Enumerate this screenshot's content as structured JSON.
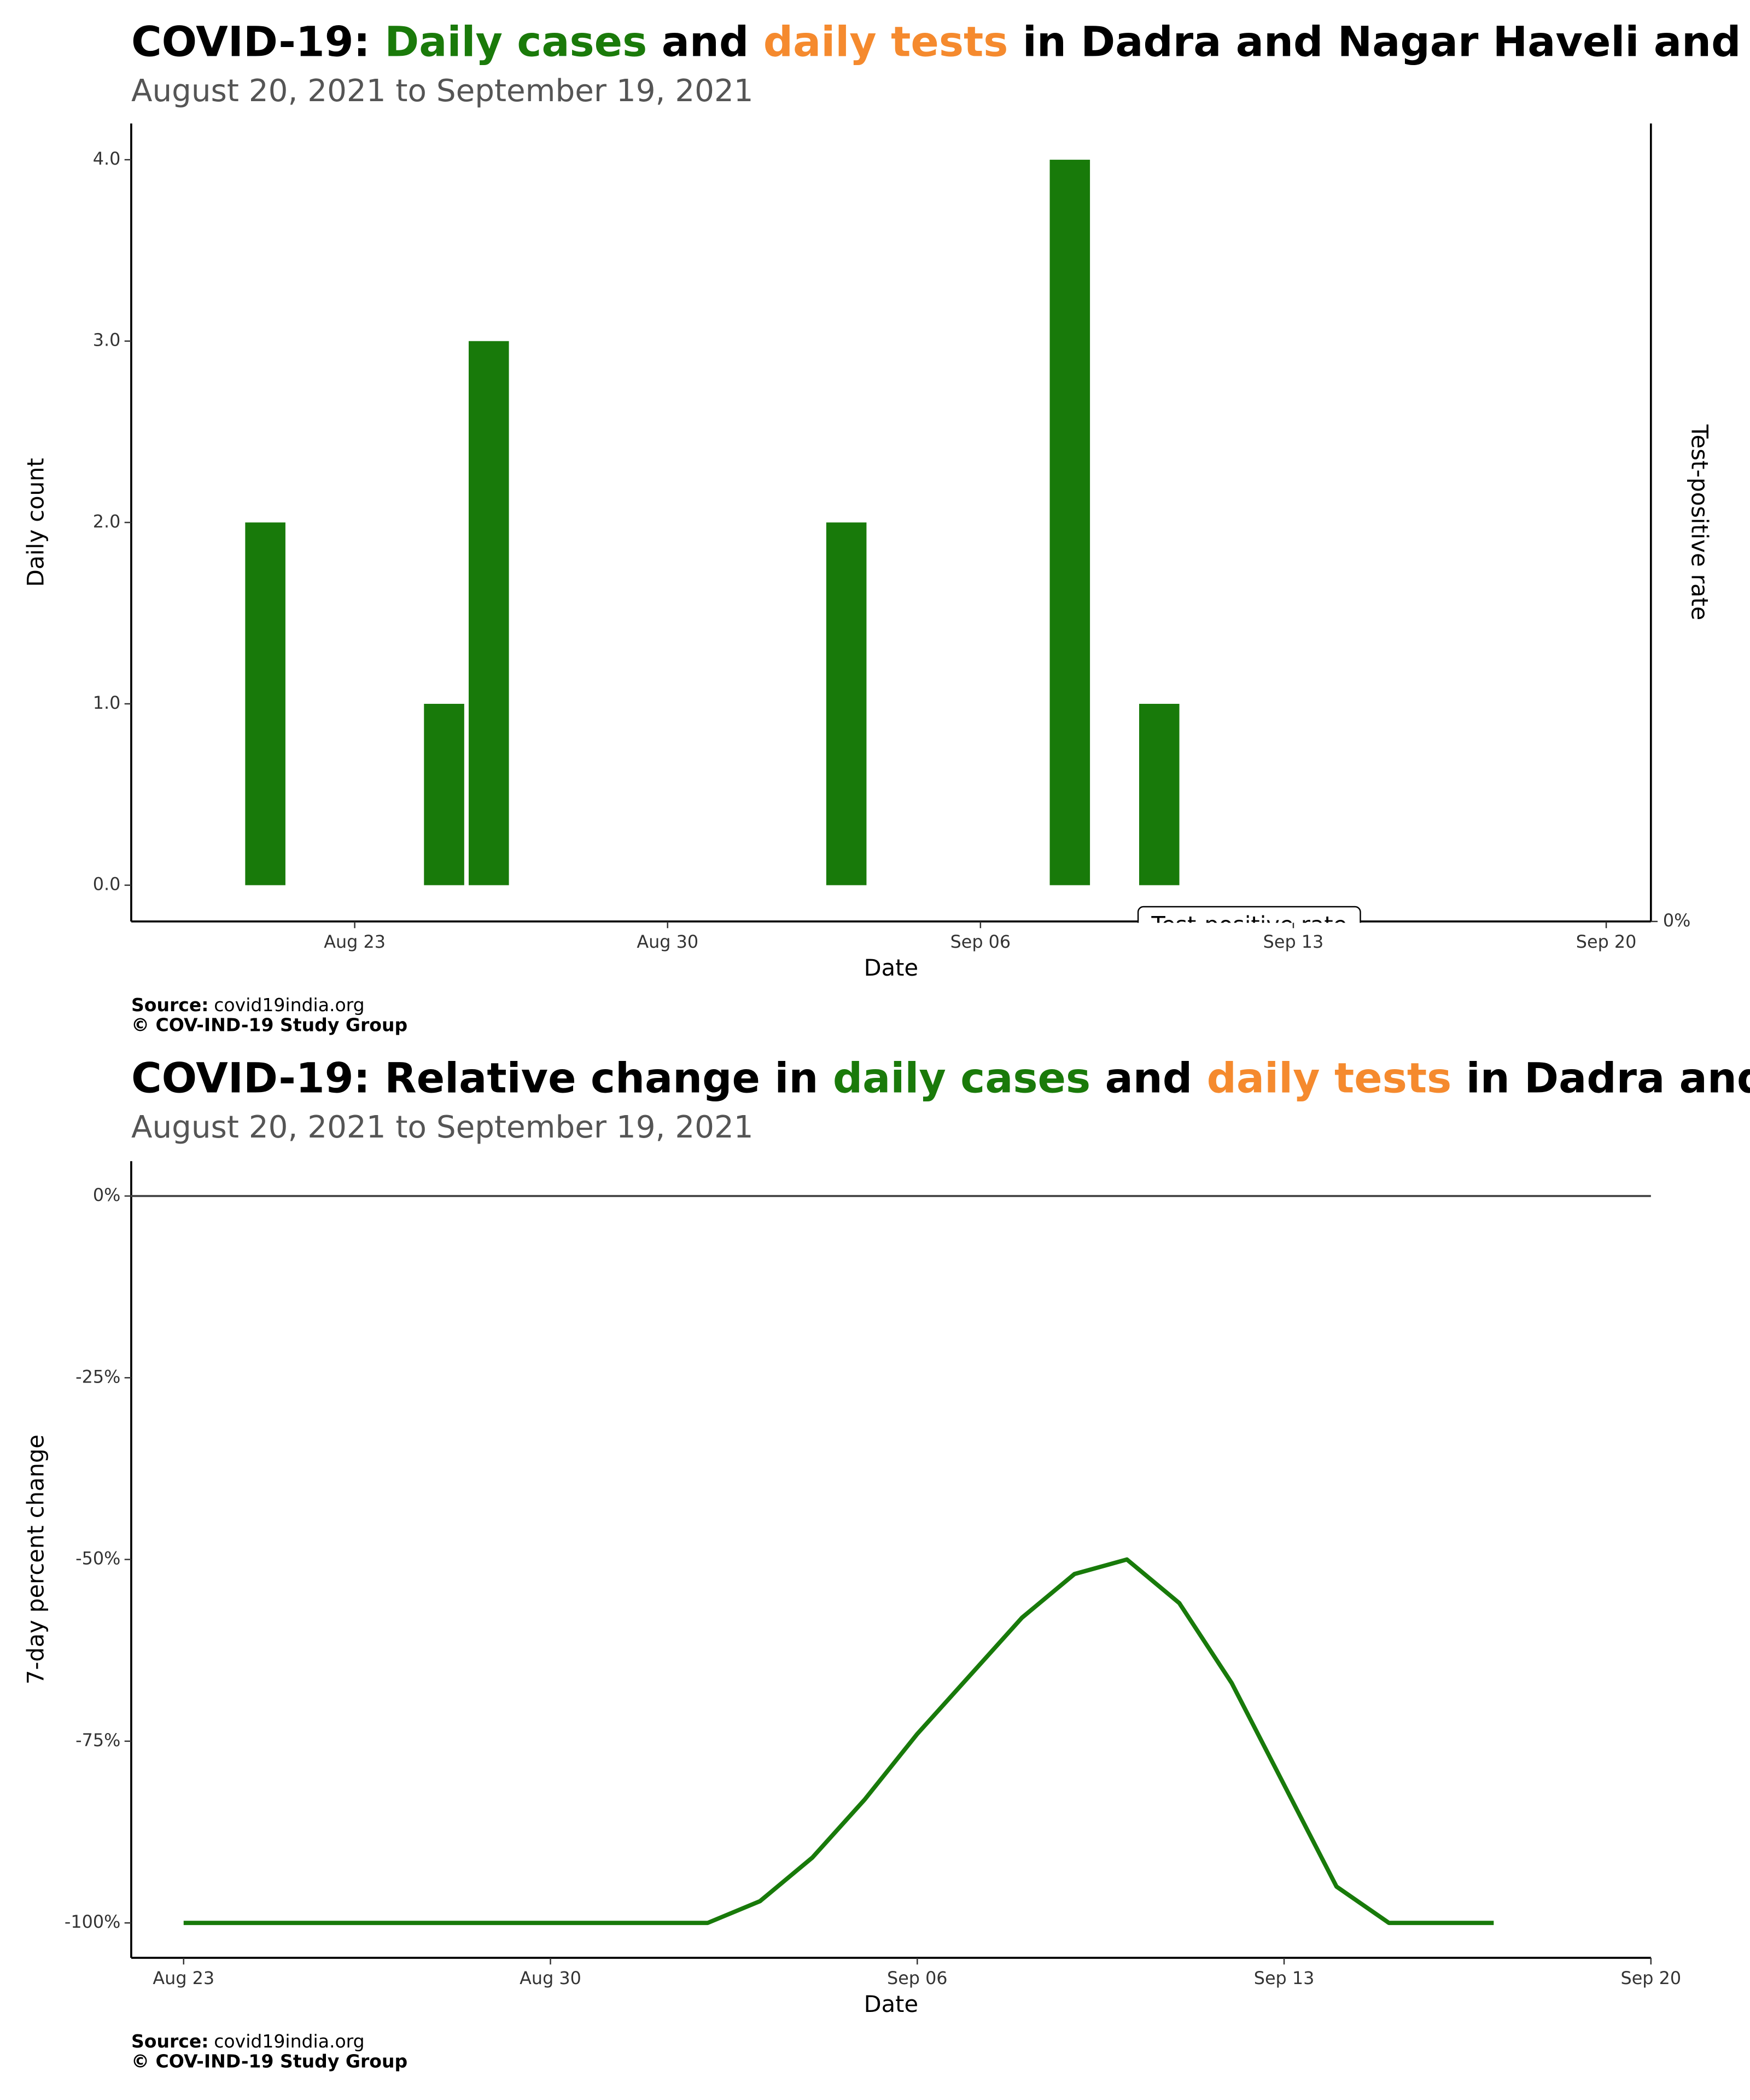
{
  "chart_data": [
    {
      "type": "bar",
      "title": [
        {
          "text": "COVID-19: ",
          "color": "#000000"
        },
        {
          "text": "Daily cases",
          "color": "#1a7a0a"
        },
        {
          "text": " and ",
          "color": "#000000"
        },
        {
          "text": "daily tests",
          "color": "#f58a2e"
        },
        {
          "text": " in Dadra and Nagar Haveli and Daman and Diu",
          "color": "#000000"
        }
      ],
      "subtitle": "August 20, 2021 to September 19, 2021",
      "xlabel": "Date",
      "ylabel": "Daily count",
      "y2label": "Test-positive rate",
      "x": [
        "Aug 21",
        "Aug 25",
        "Aug 26",
        "Sep 3",
        "Sep 8",
        "Sep 10"
      ],
      "values": [
        2,
        1,
        3,
        2,
        4,
        1
      ],
      "color": "#187a0a",
      "xlim": [
        "Aug 18",
        "Sep 21"
      ],
      "xticks": [
        "Aug 23",
        "Aug 30",
        "Sep 06",
        "Sep 13",
        "Sep 20"
      ],
      "ylim": [
        -0.2,
        4.2
      ],
      "yticks": [
        {
          "value": 0,
          "label": "0.0"
        },
        {
          "value": 1,
          "label": "1.0"
        },
        {
          "value": 2,
          "label": "2.0"
        },
        {
          "value": 3,
          "label": "3.0"
        },
        {
          "value": 4,
          "label": "4.0"
        }
      ],
      "y2lim": [
        0,
        1
      ],
      "y2ticks": [
        {
          "value": 0,
          "label": "0%"
        }
      ],
      "annotation": "Test-positive rate",
      "source_label": "Source:",
      "source": "covid19india.org",
      "copyright": "© COV-IND-19 Study Group"
    },
    {
      "type": "line",
      "title": [
        {
          "text": "COVID-19: Relative change in ",
          "color": "#000000"
        },
        {
          "text": "daily cases",
          "color": "#1a7a0a"
        },
        {
          "text": " and ",
          "color": "#000000"
        },
        {
          "text": "daily tests",
          "color": "#f58a2e"
        },
        {
          "text": " in Dadra and Nagar Haveli and Daman and Diu",
          "color": "#000000"
        }
      ],
      "subtitle": "August 20, 2021 to September 19, 2021",
      "xlabel": "Date",
      "ylabel": "7-day percent change",
      "x": [
        "Aug 23",
        "Aug 24",
        "Aug 25",
        "Aug 26",
        "Aug 27",
        "Aug 28",
        "Aug 29",
        "Aug 30",
        "Aug 31",
        "Sep 1",
        "Sep 2",
        "Sep 3",
        "Sep 4",
        "Sep 5",
        "Sep 6",
        "Sep 7",
        "Sep 8",
        "Sep 9",
        "Sep 10",
        "Sep 11",
        "Sep 12",
        "Sep 13",
        "Sep 14",
        "Sep 15",
        "Sep 16",
        "Sep 17"
      ],
      "values": [
        -100,
        -100,
        -100,
        -100,
        -100,
        -100,
        -100,
        -100,
        -100,
        -100,
        -100,
        -97,
        -91,
        -83,
        -74,
        -66,
        -58,
        -52,
        -50,
        -56,
        -67,
        -81,
        -95,
        -100,
        -100,
        -100
      ],
      "color": "#187a0a",
      "xlim": [
        "Aug 22",
        "Sep 20"
      ],
      "xticks": [
        "Aug 23",
        "Aug 30",
        "Sep 06",
        "Sep 13",
        "Sep 20"
      ],
      "ylim": [
        -104.8,
        4.8
      ],
      "yticks": [
        {
          "value": 0,
          "label": "0%"
        },
        {
          "value": -25,
          "label": "-25%"
        },
        {
          "value": -50,
          "label": "-50%"
        },
        {
          "value": -75,
          "label": "-75%"
        },
        {
          "value": -100,
          "label": "-100%"
        }
      ],
      "zero_line": true,
      "source_label": "Source:",
      "source": "covid19india.org",
      "copyright": "© COV-IND-19 Study Group"
    }
  ]
}
